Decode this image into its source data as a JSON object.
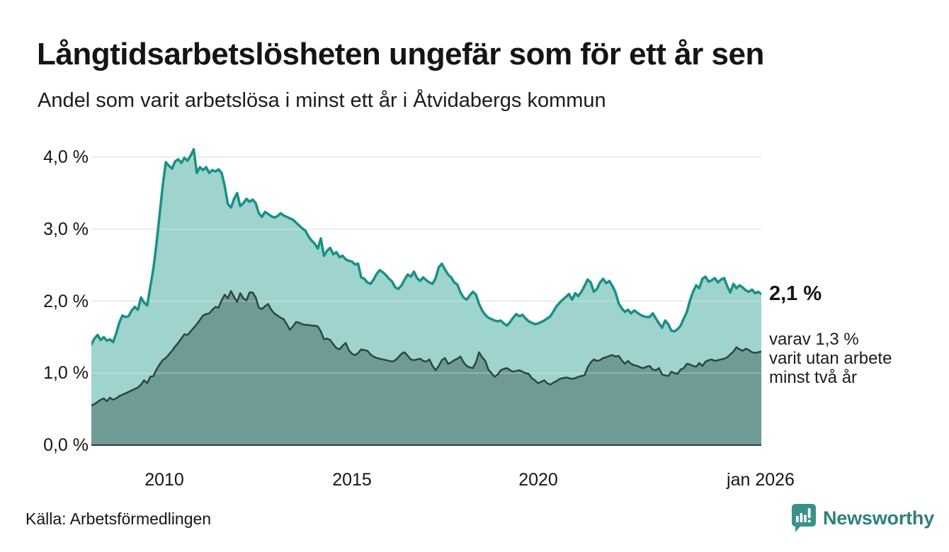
{
  "header": {
    "title": "Långtidsarbetslösheten ungefär som för ett år sen",
    "subtitle": "Andel som varit arbetslösa i minst ett år i Åtvidabergs kommun"
  },
  "chart_data": {
    "type": "area",
    "title": "Långtidsarbetslösheten ungefär som för ett år sen",
    "subtitle": "Andel som varit arbetslösa i minst ett år i Åtvidabergs kommun",
    "unit": "%",
    "x_start": "2008-01",
    "x_end": "2026-01",
    "freq": "monthly",
    "grid": true,
    "ylim": [
      0,
      4.4
    ],
    "y_ticks": [
      "4,0 %",
      "3,0 %",
      "2,0 %",
      "1,0 %",
      "0,0 %"
    ],
    "y_tick_values": [
      4,
      3,
      2,
      1,
      0
    ],
    "x_ticks": [
      "2010",
      "2015",
      "2020",
      "jan 2026"
    ],
    "x_tick_months": [
      24,
      84,
      144,
      216
    ],
    "colors": {
      "grid": "#dedede",
      "axis": "#333d3b",
      "background": "#ffffff"
    },
    "series": [
      {
        "name": "Andel som varit arbetslösa minst ett år",
        "line_color": "#179186",
        "fill_color": "#9fd3cd",
        "line_width": 3.5,
        "latest_label": "2,1 %",
        "values": [
          1.4,
          1.48,
          1.53,
          1.46,
          1.5,
          1.45,
          1.47,
          1.43,
          1.55,
          1.7,
          1.8,
          1.78,
          1.79,
          1.87,
          1.92,
          1.88,
          2.05,
          1.98,
          1.94,
          2.2,
          2.45,
          2.8,
          3.2,
          3.6,
          3.93,
          3.88,
          3.84,
          3.94,
          3.97,
          3.92,
          3.99,
          3.95,
          4.02,
          4.11,
          3.78,
          3.86,
          3.82,
          3.86,
          3.78,
          3.82,
          3.8,
          3.83,
          3.78,
          3.6,
          3.35,
          3.3,
          3.42,
          3.5,
          3.32,
          3.36,
          3.42,
          3.38,
          3.41,
          3.36,
          3.22,
          3.17,
          3.24,
          3.21,
          3.18,
          3.16,
          3.18,
          3.22,
          3.19,
          3.17,
          3.15,
          3.13,
          3.09,
          3.05,
          3.01,
          2.98,
          2.9,
          2.84,
          2.8,
          2.73,
          2.87,
          2.63,
          2.7,
          2.74,
          2.65,
          2.68,
          2.61,
          2.63,
          2.58,
          2.56,
          2.55,
          2.51,
          2.52,
          2.33,
          2.31,
          2.26,
          2.24,
          2.3,
          2.38,
          2.43,
          2.4,
          2.36,
          2.31,
          2.27,
          2.19,
          2.17,
          2.22,
          2.3,
          2.37,
          2.34,
          2.41,
          2.32,
          2.28,
          2.33,
          2.29,
          2.26,
          2.24,
          2.32,
          2.47,
          2.52,
          2.44,
          2.37,
          2.33,
          2.26,
          2.23,
          2.12,
          2.05,
          2.02,
          2.08,
          2.13,
          2.09,
          1.96,
          1.87,
          1.81,
          1.77,
          1.75,
          1.73,
          1.72,
          1.73,
          1.69,
          1.66,
          1.71,
          1.77,
          1.82,
          1.79,
          1.81,
          1.76,
          1.72,
          1.7,
          1.68,
          1.69,
          1.71,
          1.73,
          1.76,
          1.79,
          1.86,
          1.93,
          1.98,
          2.02,
          2.06,
          2.1,
          2.02,
          2.11,
          2.07,
          2.13,
          2.21,
          2.3,
          2.26,
          2.13,
          2.17,
          2.26,
          2.31,
          2.25,
          2.28,
          2.21,
          2.12,
          1.97,
          1.9,
          1.85,
          1.88,
          1.83,
          1.87,
          1.84,
          1.81,
          1.79,
          1.78,
          1.78,
          1.83,
          1.76,
          1.69,
          1.63,
          1.73,
          1.68,
          1.59,
          1.58,
          1.61,
          1.66,
          1.76,
          1.85,
          2.01,
          2.13,
          2.22,
          2.18,
          2.31,
          2.34,
          2.27,
          2.29,
          2.32,
          2.26,
          2.3,
          2.32,
          2.21,
          2.12,
          2.24,
          2.18,
          2.22,
          2.19,
          2.15,
          2.13,
          2.16,
          2.11,
          2.13,
          2.1
        ]
      },
      {
        "name": "Andel som varit utan arbete minst två år",
        "line_color": "#2e4441",
        "fill_color": "#6f9b96",
        "line_width": 2.5,
        "latest_label": "1,3 %",
        "values": [
          0.55,
          0.57,
          0.6,
          0.63,
          0.65,
          0.61,
          0.66,
          0.63,
          0.65,
          0.68,
          0.7,
          0.72,
          0.74,
          0.76,
          0.78,
          0.8,
          0.84,
          0.9,
          0.86,
          0.95,
          0.96,
          1.05,
          1.12,
          1.18,
          1.21,
          1.26,
          1.31,
          1.37,
          1.42,
          1.48,
          1.54,
          1.53,
          1.58,
          1.63,
          1.68,
          1.74,
          1.8,
          1.82,
          1.83,
          1.88,
          1.92,
          1.91,
          2.01,
          2.09,
          2.04,
          2.14,
          2.06,
          1.99,
          2.11,
          2.04,
          2.01,
          2.12,
          2.12,
          2.05,
          1.91,
          1.89,
          1.93,
          1.96,
          1.88,
          1.83,
          1.8,
          1.77,
          1.75,
          1.68,
          1.6,
          1.65,
          1.71,
          1.7,
          1.68,
          1.67,
          1.67,
          1.66,
          1.66,
          1.65,
          1.58,
          1.47,
          1.48,
          1.46,
          1.4,
          1.35,
          1.33,
          1.38,
          1.42,
          1.32,
          1.27,
          1.25,
          1.28,
          1.33,
          1.32,
          1.31,
          1.26,
          1.23,
          1.21,
          1.2,
          1.19,
          1.18,
          1.17,
          1.16,
          1.18,
          1.22,
          1.27,
          1.29,
          1.24,
          1.19,
          1.18,
          1.19,
          1.2,
          1.17,
          1.16,
          1.19,
          1.1,
          1.04,
          1.1,
          1.18,
          1.21,
          1.13,
          1.15,
          1.18,
          1.2,
          1.23,
          1.15,
          1.1,
          1.08,
          1.07,
          1.15,
          1.29,
          1.22,
          1.17,
          1.05,
          1.0,
          0.95,
          0.98,
          1.04,
          1.06,
          1.07,
          1.04,
          1.02,
          1.03,
          1.04,
          1.02,
          1.0,
          0.99,
          0.93,
          0.9,
          0.86,
          0.88,
          0.9,
          0.86,
          0.84,
          0.87,
          0.89,
          0.92,
          0.93,
          0.94,
          0.93,
          0.92,
          0.93,
          0.95,
          0.96,
          0.97,
          1.08,
          1.15,
          1.19,
          1.17,
          1.18,
          1.21,
          1.22,
          1.24,
          1.25,
          1.23,
          1.24,
          1.18,
          1.13,
          1.17,
          1.13,
          1.11,
          1.1,
          1.08,
          1.07,
          1.09,
          1.1,
          1.05,
          1.04,
          1.07,
          0.98,
          0.97,
          0.96,
          1.02,
          1.0,
          0.99,
          1.05,
          1.07,
          1.13,
          1.12,
          1.1,
          1.09,
          1.14,
          1.1,
          1.16,
          1.18,
          1.19,
          1.17,
          1.18,
          1.19,
          1.2,
          1.22,
          1.26,
          1.3,
          1.36,
          1.33,
          1.31,
          1.34,
          1.32,
          1.29,
          1.28,
          1.29,
          1.3
        ]
      }
    ],
    "annotations": {
      "latest_total": "2,1 %",
      "breakdown_lines": [
        "varav 1,3 %",
        "varit utan arbete",
        "minst två år"
      ]
    }
  },
  "footer": {
    "source": "Källa: Arbetsförmedlingen",
    "brand": "Newsworthy"
  }
}
